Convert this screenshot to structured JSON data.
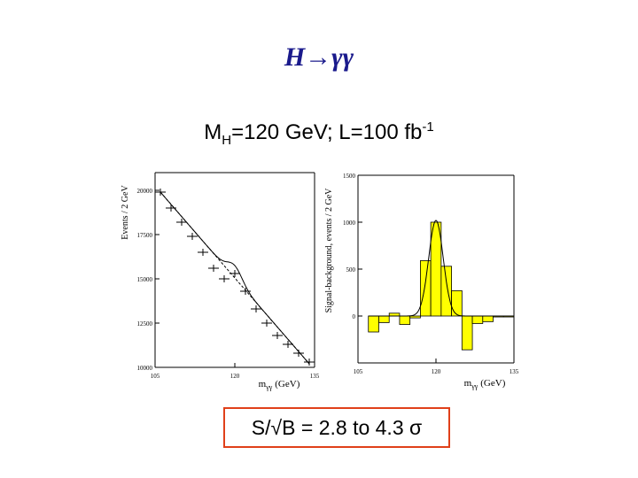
{
  "slide": {
    "title": "H→γγ",
    "subtitle_prefix": "M",
    "subtitle_sub": "H",
    "subtitle_mid": "=120 GeV; L=100 fb",
    "subtitle_sup": "-1",
    "result": "S/√B = 2.8 to 4.3 σ"
  },
  "colors": {
    "title": "#1a1a8c",
    "fill": "#ffff00",
    "box_border": "#e0401a"
  },
  "chart_data": [
    {
      "type": "scatter",
      "ylabel": "Events / 2 GeV",
      "xlabel": "m",
      "xlabel_sub": "γγ",
      "xlabel_unit": "(GeV)",
      "xlim": [
        105,
        135
      ],
      "ylim": [
        10000,
        21000
      ],
      "xticks": [
        "105",
        "120",
        "135"
      ],
      "yticks": [
        "10000",
        "12500",
        "15000",
        "17500",
        "20000"
      ],
      "x": [
        106,
        108,
        110,
        112,
        114,
        116,
        118,
        120,
        122,
        124,
        126,
        128,
        130,
        132,
        134
      ],
      "y": [
        19900,
        19000,
        18200,
        17400,
        16500,
        15600,
        15000,
        15300,
        14300,
        13300,
        12500,
        11800,
        11300,
        10800,
        10300
      ],
      "background_fit": {
        "x": [
          106,
          134
        ],
        "y": [
          19900,
          10200
        ]
      },
      "signal_peak": {
        "mean": 120,
        "sigma": 1.4,
        "amplitude": 700
      }
    },
    {
      "type": "bar",
      "ylabel": "Signal-background, events / 2 GeV",
      "xlabel": "m",
      "xlabel_sub": "γγ",
      "xlabel_unit": "(GeV)",
      "xlim": [
        105,
        135
      ],
      "ylim": [
        -500,
        1500
      ],
      "xticks": [
        "105",
        "120",
        "135"
      ],
      "yticks": [
        "0",
        "500",
        "1000",
        "1500"
      ],
      "bin_edges": [
        107,
        109,
        111,
        113,
        115,
        117,
        119,
        121,
        123,
        125,
        127,
        129,
        131,
        133,
        135
      ],
      "values": [
        -170,
        -70,
        30,
        -90,
        -20,
        590,
        1000,
        530,
        270,
        -360,
        -80,
        -60,
        -10,
        -10
      ],
      "fit": {
        "mean": 120,
        "sigma": 1.4,
        "amplitude": 1020
      }
    }
  ]
}
